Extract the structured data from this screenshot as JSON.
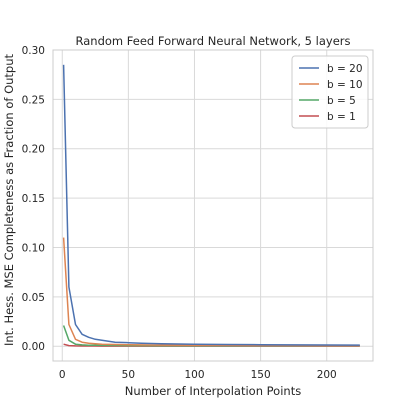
{
  "chart_data": {
    "type": "line",
    "title": "Random Feed Forward Neural Network, 5 layers",
    "xlabel": "Number of Interpolation Points",
    "ylabel": "Int. Hess. MSE Completeness as Fraction of Output",
    "xlim": [
      -7,
      235
    ],
    "ylim": [
      -0.015,
      0.3
    ],
    "xticks": [
      0,
      50,
      100,
      150,
      200
    ],
    "xtick_labels": [
      "0",
      "50",
      "100",
      "150",
      "200"
    ],
    "yticks": [
      0.0,
      0.05,
      0.1,
      0.15,
      0.2,
      0.25,
      0.3
    ],
    "ytick_labels": [
      "0.00",
      "0.05",
      "0.10",
      "0.15",
      "0.20",
      "0.25",
      "0.30"
    ],
    "grid": true,
    "legend_position": "top-right",
    "x": [
      1,
      5,
      10,
      15,
      20,
      25,
      30,
      40,
      50,
      60,
      75,
      100,
      125,
      150,
      175,
      200,
      225
    ],
    "series": [
      {
        "name": "b = 20",
        "color": "#4c72b0",
        "values": [
          0.285,
          0.06,
          0.022,
          0.012,
          0.009,
          0.007,
          0.006,
          0.004,
          0.0035,
          0.003,
          0.0025,
          0.002,
          0.0017,
          0.0015,
          0.0013,
          0.0012,
          0.0011
        ]
      },
      {
        "name": "b = 10",
        "color": "#dd8452",
        "values": [
          0.11,
          0.022,
          0.007,
          0.004,
          0.003,
          0.0025,
          0.002,
          0.0017,
          0.0015,
          0.0013,
          0.0011,
          0.001,
          0.0009,
          0.0008,
          0.0008,
          0.0007,
          0.0007
        ]
      },
      {
        "name": "b = 5",
        "color": "#55a868",
        "values": [
          0.021,
          0.006,
          0.002,
          0.0013,
          0.001,
          0.0009,
          0.0008,
          0.0007,
          0.0006,
          0.0006,
          0.0005,
          0.0005,
          0.0004,
          0.0004,
          0.0004,
          0.0004,
          0.0004
        ]
      },
      {
        "name": "b = 1",
        "color": "#c44e52",
        "values": [
          0.002,
          0.0006,
          0.0003,
          0.0002,
          0.0002,
          0.0002,
          0.0001,
          0.0001,
          0.0001,
          0.0001,
          0.0001,
          0.0001,
          0.0001,
          0.0001,
          0.0001,
          0.0001,
          0.0001
        ]
      }
    ]
  }
}
